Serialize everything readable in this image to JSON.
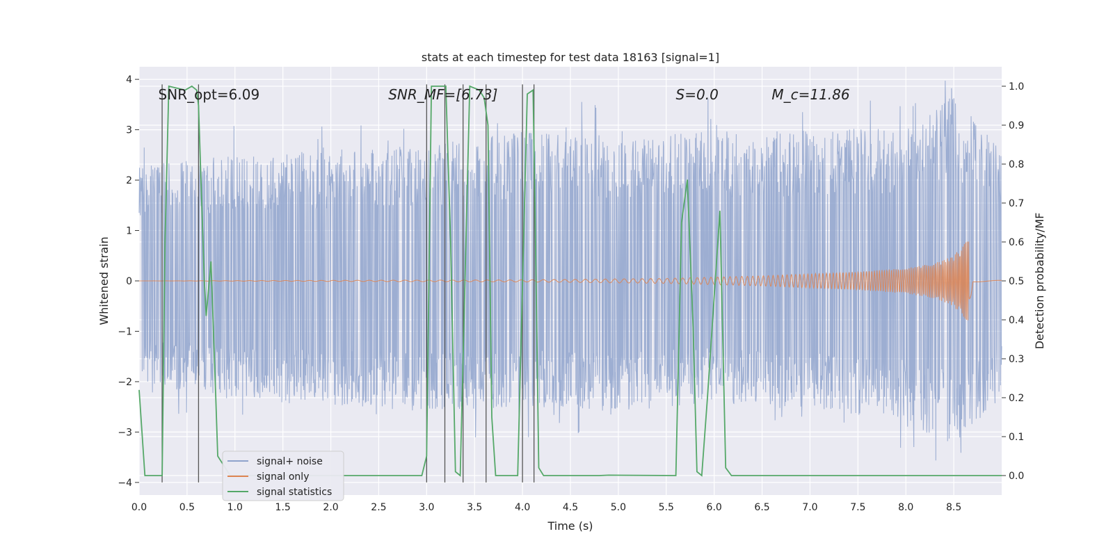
{
  "chart_data": {
    "type": "line",
    "title": "stats at each timestep for test data 18163 [signal=1]",
    "xlabel": "Time (s)",
    "ylabel_left": "Whitened strain",
    "ylabel_right": "Detection probability/MF",
    "xlim": [
      0.0,
      9.0
    ],
    "ylim_left": [
      -4.25,
      4.25
    ],
    "ylim_right": [
      -0.05,
      1.05
    ],
    "x_ticks": [
      "0.0",
      "0.5",
      "1.0",
      "1.5",
      "2.0",
      "2.5",
      "3.0",
      "3.5",
      "4.0",
      "4.5",
      "5.0",
      "5.5",
      "6.0",
      "6.5",
      "7.0",
      "7.5",
      "8.0",
      "8.5"
    ],
    "y_left_ticks": [
      "4",
      "3",
      "2",
      "1",
      "0",
      "−1",
      "−2",
      "−3",
      "−4"
    ],
    "y_right_ticks": [
      "1.0",
      "0.9",
      "0.8",
      "0.7",
      "0.6",
      "0.5",
      "0.4",
      "0.3",
      "0.2",
      "0.1",
      "0.0"
    ],
    "grid": true,
    "legend_position": "lower-left",
    "annotations": [
      {
        "id": "snr_opt",
        "text": "SNR_opt=6.09",
        "italic": false
      },
      {
        "id": "snr_mf",
        "text": "SNR_MF=[6.73]",
        "italic": true
      },
      {
        "id": "s",
        "text": "S=0.0",
        "italic": true
      },
      {
        "id": "mc",
        "text": "M_c=11.86",
        "italic": true
      }
    ],
    "series": [
      {
        "name": "signal+ noise",
        "color": "#8fa3cc",
        "axis": "left",
        "envelope": {
          "t": [
            0.0,
            1.0,
            2.0,
            3.0,
            4.0,
            5.0,
            6.0,
            7.0,
            8.0,
            8.5,
            9.0
          ],
          "upper": [
            2.3,
            2.5,
            2.6,
            2.7,
            3.0,
            2.8,
            3.0,
            3.0,
            3.1,
            3.7,
            2.6
          ],
          "lower": [
            -2.0,
            -2.4,
            -2.5,
            -2.6,
            -2.5,
            -2.6,
            -2.4,
            -2.6,
            -2.8,
            -3.3,
            -2.3
          ]
        }
      },
      {
        "name": "signal only",
        "color": "#dd8452",
        "axis": "left",
        "envelope": {
          "t": [
            0.0,
            4.0,
            5.5,
            6.5,
            7.5,
            8.0,
            8.3,
            8.5,
            8.6,
            8.66,
            8.7,
            9.0
          ],
          "amplitude": [
            0.0,
            0.02,
            0.05,
            0.1,
            0.18,
            0.25,
            0.35,
            0.5,
            0.75,
            0.85,
            0.02,
            0.01
          ]
        }
      },
      {
        "name": "signal statistics",
        "color": "#55a868",
        "axis": "right",
        "points": [
          [
            0.0,
            0.22
          ],
          [
            0.06,
            0.0
          ],
          [
            0.24,
            0.0
          ],
          [
            0.27,
            0.6
          ],
          [
            0.31,
            1.0
          ],
          [
            0.48,
            0.99
          ],
          [
            0.55,
            1.0
          ],
          [
            0.6,
            0.99
          ],
          [
            0.62,
            0.95
          ],
          [
            0.68,
            0.5
          ],
          [
            0.7,
            0.41
          ],
          [
            0.75,
            0.55
          ],
          [
            0.8,
            0.2
          ],
          [
            0.82,
            0.05
          ],
          [
            0.95,
            0.0
          ],
          [
            2.95,
            0.0
          ],
          [
            3.0,
            0.05
          ],
          [
            3.05,
            1.0
          ],
          [
            3.2,
            1.0
          ],
          [
            3.25,
            0.6
          ],
          [
            3.3,
            0.01
          ],
          [
            3.35,
            0.0
          ],
          [
            3.45,
            1.0
          ],
          [
            3.55,
            0.99
          ],
          [
            3.6,
            0.97
          ],
          [
            3.64,
            0.9
          ],
          [
            3.68,
            0.15
          ],
          [
            3.72,
            0.0
          ],
          [
            3.95,
            0.0
          ],
          [
            4.05,
            0.98
          ],
          [
            4.11,
            0.99
          ],
          [
            4.13,
            0.7
          ],
          [
            4.17,
            0.02
          ],
          [
            4.22,
            0.0
          ],
          [
            4.8,
            0.0
          ],
          [
            4.9,
            0.001
          ],
          [
            5.6,
            0.0
          ],
          [
            5.66,
            0.65
          ],
          [
            5.72,
            0.76
          ],
          [
            5.78,
            0.38
          ],
          [
            5.82,
            0.01
          ],
          [
            5.87,
            0.0
          ],
          [
            5.93,
            0.2
          ],
          [
            6.06,
            0.68
          ],
          [
            6.12,
            0.02
          ],
          [
            6.18,
            0.0
          ],
          [
            9.0,
            0.0
          ]
        ]
      }
    ],
    "trigger_lines_x": [
      0.24,
      0.62,
      3.0,
      3.19,
      3.38,
      3.62,
      4.0,
      4.12
    ]
  }
}
